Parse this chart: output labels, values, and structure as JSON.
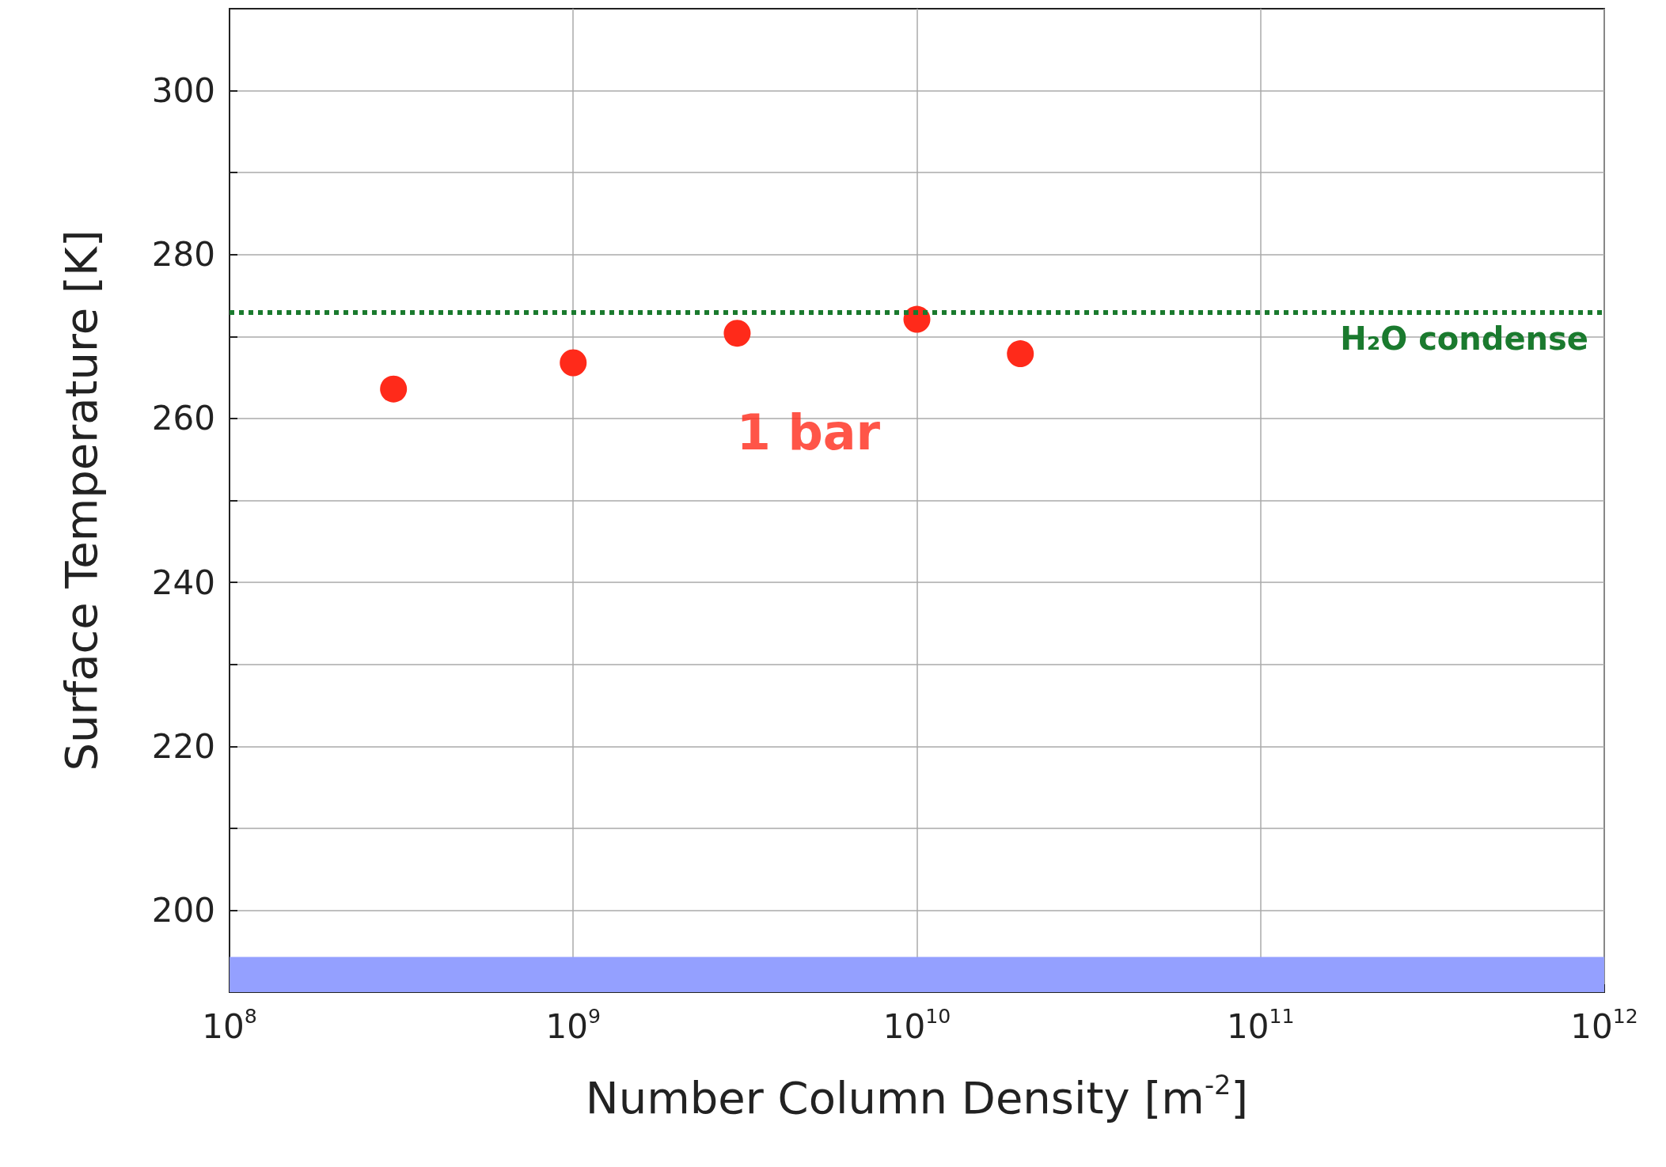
{
  "chart_data": {
    "type": "scatter",
    "xlabel": "Number Column Density [m$^{-2}$]",
    "ylabel": "Surface Temperature [K]",
    "series": [
      {
        "name": "1 bar",
        "color": "#ff2a1a",
        "x": [
          300000000.0,
          1000000000.0,
          3000000000.0,
          10000000000.0,
          20000000000.0
        ],
        "values": [
          263.6,
          266.8,
          270.4,
          272.1,
          267.9
        ]
      }
    ],
    "log": "x",
    "marker": "circle",
    "grid": true,
    "legend": false,
    "xlim": [
      100000000.0,
      1000000000000.0
    ],
    "xticks": [
      {
        "value": 100000000.0,
        "label": "10$^{8}$"
      },
      {
        "value": 1000000000.0,
        "label": "10$^{9}$"
      },
      {
        "value": 10000000000.0,
        "label": "10$^{10}$"
      },
      {
        "value": 100000000000.0,
        "label": "10$^{11}$"
      },
      {
        "value": 1000000000000.0,
        "label": "10$^{12}$"
      }
    ],
    "ylim": [
      190,
      310
    ],
    "yticks": [
      200,
      {
        "value": 210,
        "label": null
      },
      220,
      {
        "value": 230,
        "label": null
      },
      240,
      {
        "value": 250,
        "label": null
      },
      260,
      {
        "value": 270,
        "label": null
      },
      280,
      {
        "value": 290,
        "label": null
      },
      300
    ],
    "ref_lines": [
      {
        "axis": "y",
        "value": 273,
        "label": "H₂O condense",
        "color": "#1a7a2e",
        "line_style": "dotted"
      }
    ],
    "bands": [
      {
        "axis": "y",
        "from": 190,
        "to": 194.3,
        "color": "#94a0ff"
      }
    ]
  }
}
